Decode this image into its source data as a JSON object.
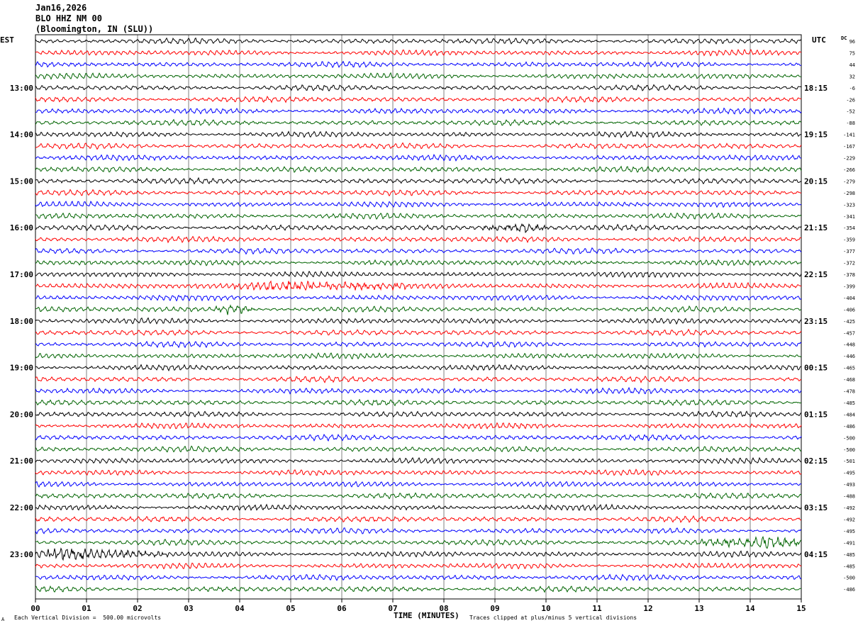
{
  "header": {
    "date": "Jan16,2026",
    "station": "BLO HHZ NM 00",
    "location": "(Bloomington, IN (SLU))"
  },
  "left_axis_label": "EST",
  "right_axis_label": "UTC",
  "dc_label": "DC",
  "footer": {
    "corner_mark": "A",
    "scale_note": "Each Vertical Division =  500.00 microvolts",
    "xlabel": "TIME (MINUTES)",
    "clip_note": "Traces clipped at plus/minus 5 vertical divisions"
  },
  "colors": {
    "black": "#000000",
    "red": "#ff0000",
    "blue": "#0000ff",
    "green": "#006400"
  },
  "chart_data": {
    "type": "line",
    "title": "BLO HHZ NM 00",
    "xlabel": "TIME (MINUTES)",
    "xlim": [
      0,
      15
    ],
    "x_ticks": [
      "00",
      "01",
      "02",
      "03",
      "04",
      "05",
      "06",
      "07",
      "08",
      "09",
      "10",
      "11",
      "12",
      "13",
      "14",
      "15"
    ],
    "trace_colors": [
      "#000000",
      "#ff0000",
      "#0000ff",
      "#006400"
    ],
    "left_hour_labels": [
      "13:00",
      "14:00",
      "15:00",
      "16:00",
      "17:00",
      "18:00",
      "19:00",
      "20:00",
      "21:00",
      "22:00",
      "23:00"
    ],
    "right_hour_labels": [
      "18:15",
      "19:15",
      "20:15",
      "21:15",
      "22:15",
      "23:15",
      "00:15",
      "01:15",
      "02:15",
      "03:15",
      "04:15"
    ],
    "dc_offsets": [
      96,
      75,
      44,
      32,
      -6,
      -26,
      -52,
      -88,
      -141,
      -167,
      -229,
      -266,
      -279,
      -298,
      -323,
      -341,
      -354,
      -359,
      -377,
      -372,
      -378,
      -399,
      -404,
      -406,
      -425,
      -457,
      -448,
      -446,
      -465,
      -468,
      -478,
      -485,
      -484,
      -486,
      -500,
      -500,
      -501,
      -495,
      -493,
      -488,
      -492,
      -492,
      -495,
      -491,
      -485,
      -485,
      -500,
      -486
    ],
    "events": [
      {
        "trace": 21,
        "start_min": 3.9,
        "end_min": 7.3,
        "peak_min": 5.0,
        "note": "burst"
      },
      {
        "trace": 23,
        "start_min": 3.5,
        "end_min": 4.3,
        "peak_min": 3.9
      },
      {
        "trace": 44,
        "start_min": 0.0,
        "end_min": 2.6,
        "peak_min": 0.4
      },
      {
        "trace": 43,
        "start_min": 13.0,
        "end_min": 15.0,
        "peak_min": 14.3
      },
      {
        "trace": 16,
        "start_min": 8.7,
        "end_min": 10.2,
        "peak_min": 9.6
      }
    ]
  }
}
